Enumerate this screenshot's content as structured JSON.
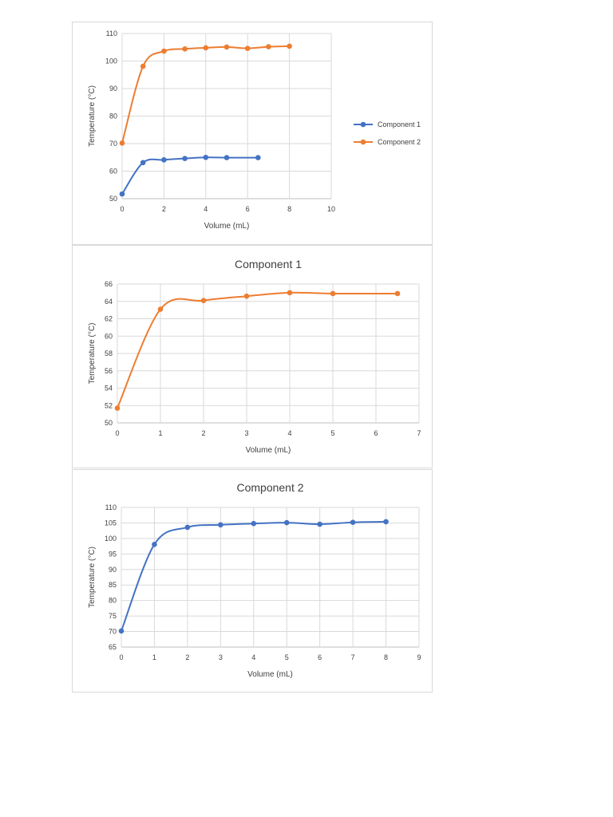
{
  "colors": {
    "blue": "#4472c4",
    "orange": "#ed7d31",
    "grid": "#d9d9d9",
    "text": "#404040"
  },
  "chart_data": [
    {
      "type": "scatter",
      "title": "",
      "xlabel": "Volume (mL)",
      "ylabel": "Temperature (°C)",
      "xlim": [
        0,
        10
      ],
      "ylim": [
        50,
        110
      ],
      "xticks": [
        0,
        2,
        4,
        6,
        8,
        10
      ],
      "yticks": [
        50,
        60,
        70,
        80,
        90,
        100,
        110
      ],
      "grid": true,
      "legend": "right",
      "series": [
        {
          "name": "Component 1",
          "color": "#4472c4",
          "x": [
            0,
            1,
            2,
            3,
            4,
            5,
            6.5
          ],
          "y": [
            51.7,
            63.1,
            64.1,
            64.6,
            65.0,
            64.9,
            64.9
          ]
        },
        {
          "name": "Component 2",
          "color": "#ed7d31",
          "x": [
            0,
            1,
            2,
            3,
            4,
            5,
            6,
            7,
            8
          ],
          "y": [
            70.2,
            98.1,
            103.6,
            104.4,
            104.8,
            105.1,
            104.6,
            105.2,
            105.4
          ]
        }
      ]
    },
    {
      "type": "scatter",
      "title": "Component 1",
      "xlabel": "Volume (mL)",
      "ylabel": "Temperature (°C)",
      "xlim": [
        0,
        7
      ],
      "ylim": [
        50,
        66
      ],
      "xticks": [
        0,
        1,
        2,
        3,
        4,
        5,
        6,
        7
      ],
      "yticks": [
        50,
        52,
        54,
        56,
        58,
        60,
        62,
        64,
        66
      ],
      "grid": true,
      "legend": "none",
      "series": [
        {
          "color": "#ed7d31",
          "x": [
            0,
            1,
            2,
            3,
            4,
            5,
            6.5
          ],
          "y": [
            51.7,
            63.1,
            64.1,
            64.6,
            65.0,
            64.9,
            64.9
          ]
        }
      ]
    },
    {
      "type": "scatter",
      "title": "Component 2",
      "xlabel": "Volume (mL)",
      "ylabel": "Temperature (°C)",
      "xlim": [
        0,
        9
      ],
      "ylim": [
        65,
        110
      ],
      "xticks": [
        0,
        1,
        2,
        3,
        4,
        5,
        6,
        7,
        8,
        9
      ],
      "yticks": [
        65,
        70,
        75,
        80,
        85,
        90,
        95,
        100,
        105,
        110
      ],
      "grid": true,
      "legend": "none",
      "series": [
        {
          "color": "#4472c4",
          "x": [
            0,
            1,
            2,
            3,
            4,
            5,
            6,
            7,
            8
          ],
          "y": [
            70.2,
            98.1,
            103.6,
            104.4,
            104.8,
            105.1,
            104.6,
            105.2,
            105.4
          ]
        }
      ]
    }
  ]
}
